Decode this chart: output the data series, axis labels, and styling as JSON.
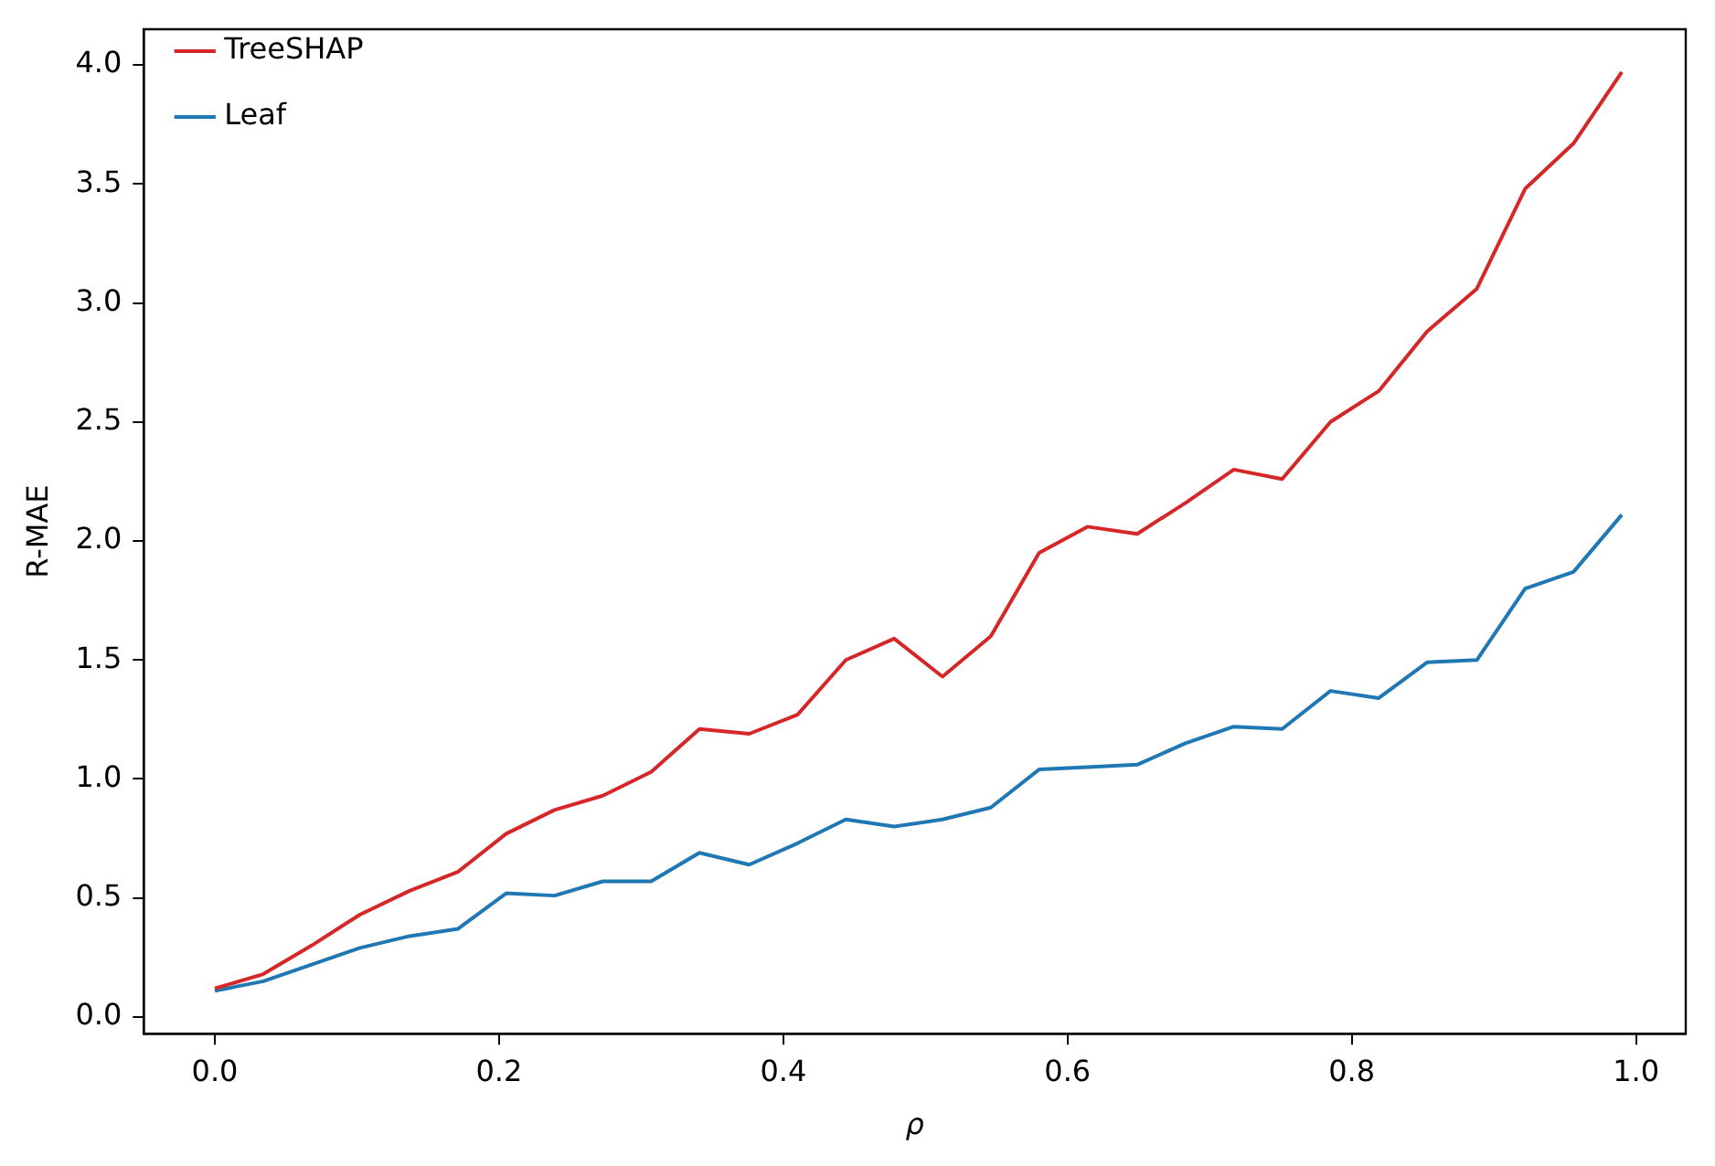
{
  "chart_data": {
    "type": "line",
    "xlabel": "ρ",
    "ylabel": "R-MAE",
    "x": [
      0,
      0.034,
      0.068,
      0.102,
      0.137,
      0.171,
      0.205,
      0.239,
      0.273,
      0.307,
      0.341,
      0.376,
      0.41,
      0.444,
      0.478,
      0.512,
      0.546,
      0.58,
      0.614,
      0.649,
      0.683,
      0.717,
      0.751,
      0.785,
      0.819,
      0.853,
      0.888,
      0.922,
      0.956,
      0.99
    ],
    "series": [
      {
        "name": "TreeSHAP",
        "color": "#d62728",
        "values": [
          0.12,
          0.18,
          0.3,
          0.43,
          0.53,
          0.61,
          0.77,
          0.87,
          0.93,
          1.03,
          1.21,
          1.19,
          1.27,
          1.5,
          1.59,
          1.43,
          1.6,
          1.95,
          2.06,
          2.03,
          2.16,
          2.3,
          2.26,
          2.5,
          2.63,
          2.88,
          3.06,
          3.48,
          3.67,
          3.97
        ]
      },
      {
        "name": "Leaf",
        "color": "#1f77b4",
        "values": [
          0.11,
          0.15,
          0.22,
          0.29,
          0.34,
          0.37,
          0.52,
          0.51,
          0.57,
          0.57,
          0.69,
          0.64,
          0.73,
          0.83,
          0.8,
          0.83,
          0.88,
          1.04,
          1.05,
          1.06,
          1.15,
          1.22,
          1.21,
          1.37,
          1.34,
          1.49,
          1.5,
          1.8,
          1.87,
          2.11
        ]
      }
    ],
    "xlim": [
      -0.05,
      1.035
    ],
    "xticks": [
      {
        "value": 0,
        "label": "0.0"
      },
      0.2,
      0.4,
      0.6,
      0.8,
      {
        "value": 1,
        "label": "1.0"
      }
    ],
    "ylim": [
      -0.07,
      4.15
    ],
    "yticks": [
      {
        "value": 0,
        "label": "0.0"
      },
      0.5,
      {
        "value": 1,
        "label": "1.0"
      },
      1.5,
      {
        "value": 2,
        "label": "2.0"
      },
      2.5,
      {
        "value": 3,
        "label": "3.0"
      },
      3.5,
      {
        "value": 4,
        "label": "4.0"
      }
    ],
    "grid": false,
    "legend": "top left",
    "marker": "none",
    "line_style": "solid"
  }
}
